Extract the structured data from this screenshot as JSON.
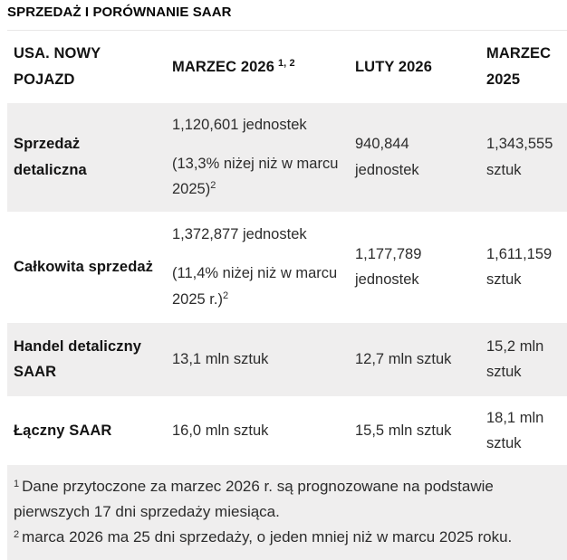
{
  "title": "SPRZEDAŻ I PORÓWNANIE SAAR",
  "table": {
    "header": {
      "col1": "USA. NOWY POJAZD",
      "col2": "MARZEC 2026",
      "col2_superscript": "1, 2",
      "col3": "LUTY 2026",
      "col4": "MARZEC 2025"
    },
    "rows": [
      {
        "label": "Sprzedaż detaliczna",
        "marzec2026_value": "1,120,601 jednostek",
        "marzec2026_note": "(13,3% niżej niż w marcu 2025)",
        "marzec2026_note_superscript": "2",
        "luty2026": "940,844 jednostek",
        "marzec2025": "1,343,555 sztuk"
      },
      {
        "label": "Całkowita sprzedaż",
        "marzec2026_value": "1,372,877 jednostek",
        "marzec2026_note": "(11,4% niżej niż w marcu 2025 r.)",
        "marzec2026_note_superscript": "2",
        "luty2026": "1,177,789 jednostek",
        "marzec2025": "1,611,159 sztuk"
      },
      {
        "label": "Handel detaliczny SAAR",
        "marzec2026_value": "13,1 mln sztuk",
        "luty2026": "12,7 mln sztuk",
        "marzec2025": "15,2 mln sztuk"
      },
      {
        "label": "Łączny SAAR",
        "marzec2026_value": "16,0 mln sztuk",
        "luty2026": "15,5 mln sztuk",
        "marzec2025": "18,1 mln sztuk"
      }
    ],
    "footnotes": [
      {
        "sup": "1",
        "text": "Dane przytoczone za marzec 2026 r. są prognozowane na podstawie pierwszych 17 dni sprzedaży miesiąca."
      },
      {
        "sup": "2",
        "text": "marca 2026 ma 25 dni sprzedaży, o jeden mniej niż w marcu 2025 roku."
      }
    ]
  },
  "colors": {
    "row_alt_bg": "#efeeee",
    "text": "#1e1e1e"
  }
}
